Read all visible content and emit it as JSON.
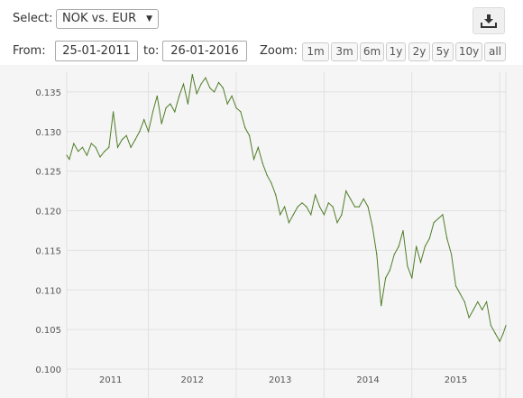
{
  "toolbar": {
    "select_label": "Select:",
    "select_value": "NOK vs. EUR",
    "from_label": "From:",
    "from_value": "25-01-2011",
    "to_label": "to:",
    "to_value": "26-01-2016",
    "zoom_label": "Zoom:",
    "zoom_options": [
      "1m",
      "3m",
      "6m",
      "1y",
      "2y",
      "5y",
      "10y",
      "all"
    ],
    "download_icon": "download-icon"
  },
  "colors": {
    "line": "#4f7d27",
    "background": "#f5f5f5",
    "grid": "#e1e1e1"
  },
  "chart_data": {
    "type": "line",
    "title": "",
    "xlabel": "",
    "ylabel": "",
    "series": [
      {
        "x": [
          2011.07,
          2011.1,
          2011.15,
          2011.2,
          2011.25,
          2011.3,
          2011.35,
          2011.4,
          2011.45,
          2011.5,
          2011.55,
          2011.6,
          2011.65,
          2011.7,
          2011.75,
          2011.8,
          2011.85,
          2011.9,
          2011.95,
          2012.0,
          2012.05,
          2012.1,
          2012.15,
          2012.2,
          2012.25,
          2012.3,
          2012.35,
          2012.4,
          2012.45,
          2012.5,
          2012.55,
          2012.6,
          2012.65,
          2012.7,
          2012.75,
          2012.8,
          2012.85,
          2012.9,
          2012.95,
          2013.0,
          2013.05,
          2013.1,
          2013.15,
          2013.2,
          2013.25,
          2013.3,
          2013.35,
          2013.4,
          2013.45,
          2013.5,
          2013.55,
          2013.6,
          2013.65,
          2013.7,
          2013.75,
          2013.8,
          2013.85,
          2013.9,
          2013.95,
          2014.0,
          2014.05,
          2014.1,
          2014.15,
          2014.2,
          2014.25,
          2014.3,
          2014.35,
          2014.4,
          2014.45,
          2014.5,
          2014.55,
          2014.6,
          2014.65,
          2014.7,
          2014.75,
          2014.8,
          2014.85,
          2014.9,
          2014.95,
          2015.0,
          2015.05,
          2015.1,
          2015.15,
          2015.2,
          2015.25,
          2015.3,
          2015.35,
          2015.4,
          2015.45,
          2015.5,
          2015.55,
          2015.6,
          2015.65,
          2015.7,
          2015.75,
          2015.8,
          2015.85,
          2015.9,
          2015.95,
          2016.0,
          2016.04,
          2016.07
        ],
        "y": [
          0.127,
          0.1265,
          0.1285,
          0.1275,
          0.128,
          0.127,
          0.1285,
          0.128,
          0.1268,
          0.1275,
          0.128,
          0.1325,
          0.128,
          0.129,
          0.1295,
          0.128,
          0.129,
          0.13,
          0.1315,
          0.13,
          0.1325,
          0.1345,
          0.131,
          0.133,
          0.1335,
          0.1325,
          0.1345,
          0.136,
          0.1335,
          0.1372,
          0.1348,
          0.136,
          0.1368,
          0.1355,
          0.135,
          0.1362,
          0.1355,
          0.1335,
          0.1345,
          0.133,
          0.1325,
          0.1305,
          0.1295,
          0.1265,
          0.128,
          0.126,
          0.1245,
          0.1235,
          0.122,
          0.1195,
          0.1205,
          0.1185,
          0.1195,
          0.1205,
          0.121,
          0.1205,
          0.1195,
          0.122,
          0.1205,
          0.1195,
          0.121,
          0.1205,
          0.1185,
          0.1195,
          0.1225,
          0.1215,
          0.1205,
          0.1205,
          0.1215,
          0.1205,
          0.118,
          0.1145,
          0.108,
          0.1115,
          0.1125,
          0.1145,
          0.1155,
          0.1175,
          0.113,
          0.1115,
          0.1155,
          0.1135,
          0.1155,
          0.1165,
          0.1185,
          0.119,
          0.1195,
          0.1165,
          0.1145,
          0.1105,
          0.1095,
          0.1085,
          0.1065,
          0.1075,
          0.1085,
          0.1075,
          0.1085,
          0.1055,
          0.1045,
          0.1035,
          0.1045,
          0.1055
        ]
      }
    ],
    "x_ticks": [
      "2011",
      "2012",
      "2013",
      "2014",
      "2015"
    ],
    "y_ticks": [
      "0.100",
      "0.105",
      "0.110",
      "0.115",
      "0.120",
      "0.125",
      "0.130",
      "0.135"
    ],
    "xlim": [
      2011.07,
      2016.07
    ],
    "ylim": [
      0.1,
      0.1375
    ],
    "grid": true,
    "legend": "none"
  }
}
